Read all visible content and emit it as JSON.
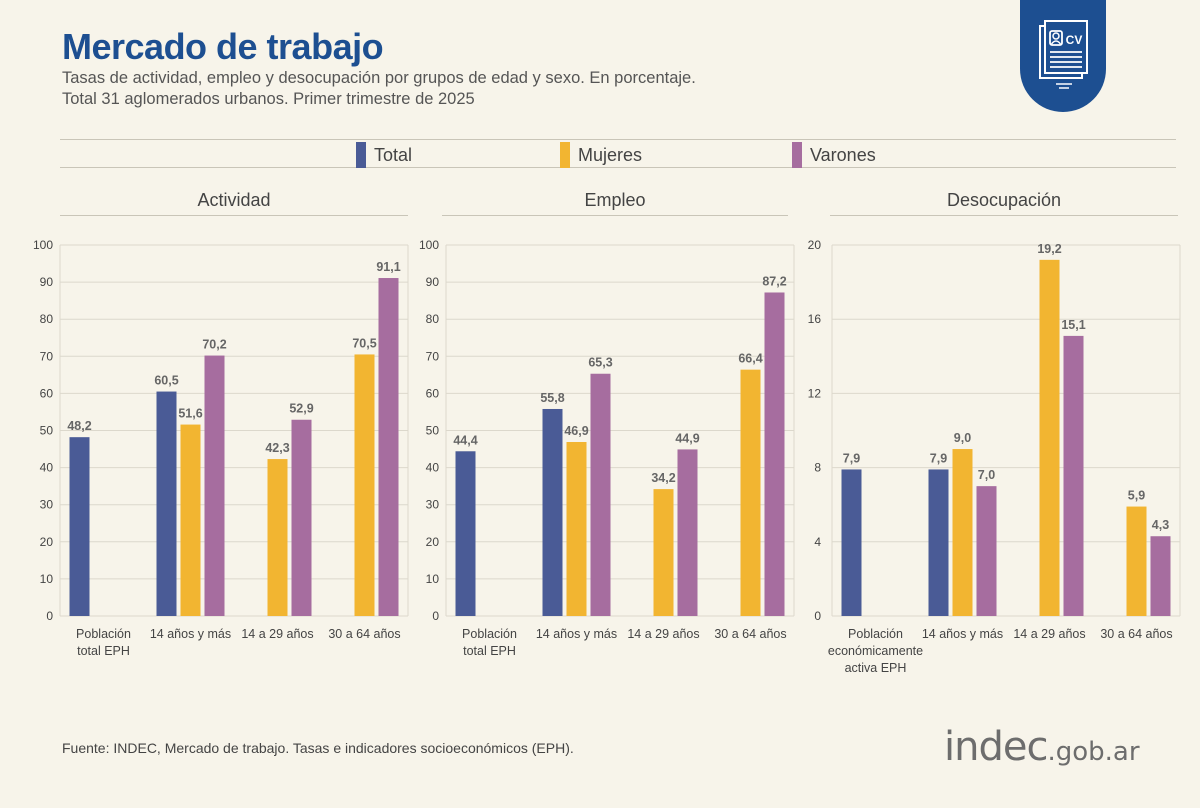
{
  "header": {
    "title": "Mercado de trabajo",
    "subtitle_line1": "Tasas de actividad, empleo y desocupación por grupos de edad y sexo. En porcentaje.",
    "subtitle_line2": "Total 31 aglomerados urbanos. Primer trimestre de 2025",
    "badge_text": "CV"
  },
  "legend": {
    "items": [
      {
        "label": "Total",
        "color": "#4a5b96"
      },
      {
        "label": "Mujeres",
        "color": "#f2b531"
      },
      {
        "label": "Varones",
        "color": "#a66d9f"
      }
    ]
  },
  "footer": {
    "source": "Fuente: INDEC, Mercado de trabajo. Tasas e indicadores socioeconómicos (EPH).",
    "logo_main": "indec",
    "logo_domain": ".gob.ar"
  },
  "chart_data": [
    {
      "type": "bar",
      "title": "Actividad",
      "categories": [
        [
          "Población",
          "total EPH"
        ],
        [
          "14 años y más"
        ],
        [
          "14 a 29 años"
        ],
        [
          "30 a 64 años"
        ]
      ],
      "series": [
        {
          "name": "Total",
          "values": [
            48.2,
            60.5,
            null,
            null
          ]
        },
        {
          "name": "Mujeres",
          "values": [
            null,
            51.6,
            42.3,
            70.5
          ]
        },
        {
          "name": "Varones",
          "values": [
            null,
            70.2,
            52.9,
            91.1
          ]
        }
      ],
      "value_labels": [
        [
          "48,2",
          "60,5",
          "",
          ""
        ],
        [
          "",
          "51,6",
          "42,3",
          "70,5"
        ],
        [
          "",
          "70,2",
          "52,9",
          "91,1"
        ]
      ],
      "yticks": [
        0,
        10,
        20,
        30,
        40,
        50,
        60,
        70,
        80,
        90,
        100
      ],
      "ylim": [
        0,
        100
      ],
      "grid": true
    },
    {
      "type": "bar",
      "title": "Empleo",
      "categories": [
        [
          "Población",
          "total EPH"
        ],
        [
          "14 años y más"
        ],
        [
          "14 a 29 años"
        ],
        [
          "30 a 64 años"
        ]
      ],
      "series": [
        {
          "name": "Total",
          "values": [
            44.4,
            55.8,
            null,
            null
          ]
        },
        {
          "name": "Mujeres",
          "values": [
            null,
            46.9,
            34.2,
            66.4
          ]
        },
        {
          "name": "Varones",
          "values": [
            null,
            65.3,
            44.9,
            87.2
          ]
        }
      ],
      "value_labels": [
        [
          "44,4",
          "55,8",
          "",
          ""
        ],
        [
          "",
          "46,9",
          "34,2",
          "66,4"
        ],
        [
          "",
          "65,3",
          "44,9",
          "87,2"
        ]
      ],
      "yticks": [
        0,
        10,
        20,
        30,
        40,
        50,
        60,
        70,
        80,
        90,
        100
      ],
      "ylim": [
        0,
        100
      ],
      "grid": true
    },
    {
      "type": "bar",
      "title": "Desocupación",
      "categories": [
        [
          "Población",
          "económicamente",
          "activa EPH"
        ],
        [
          "14 años y más"
        ],
        [
          "14 a 29 años"
        ],
        [
          "30 a 64 años"
        ]
      ],
      "series": [
        {
          "name": "Total",
          "values": [
            7.9,
            7.9,
            null,
            null
          ]
        },
        {
          "name": "Mujeres",
          "values": [
            null,
            9.0,
            19.2,
            5.9
          ]
        },
        {
          "name": "Varones",
          "values": [
            null,
            7.0,
            15.1,
            4.3
          ]
        }
      ],
      "value_labels": [
        [
          "7,9",
          "7,9",
          "",
          ""
        ],
        [
          "",
          "9,0",
          "19,2",
          "5,9"
        ],
        [
          "",
          "7,0",
          "15,1",
          "4,3"
        ]
      ],
      "yticks": [
        0,
        4,
        8,
        12,
        16,
        20
      ],
      "ylim": [
        0,
        20
      ],
      "grid": true
    }
  ]
}
